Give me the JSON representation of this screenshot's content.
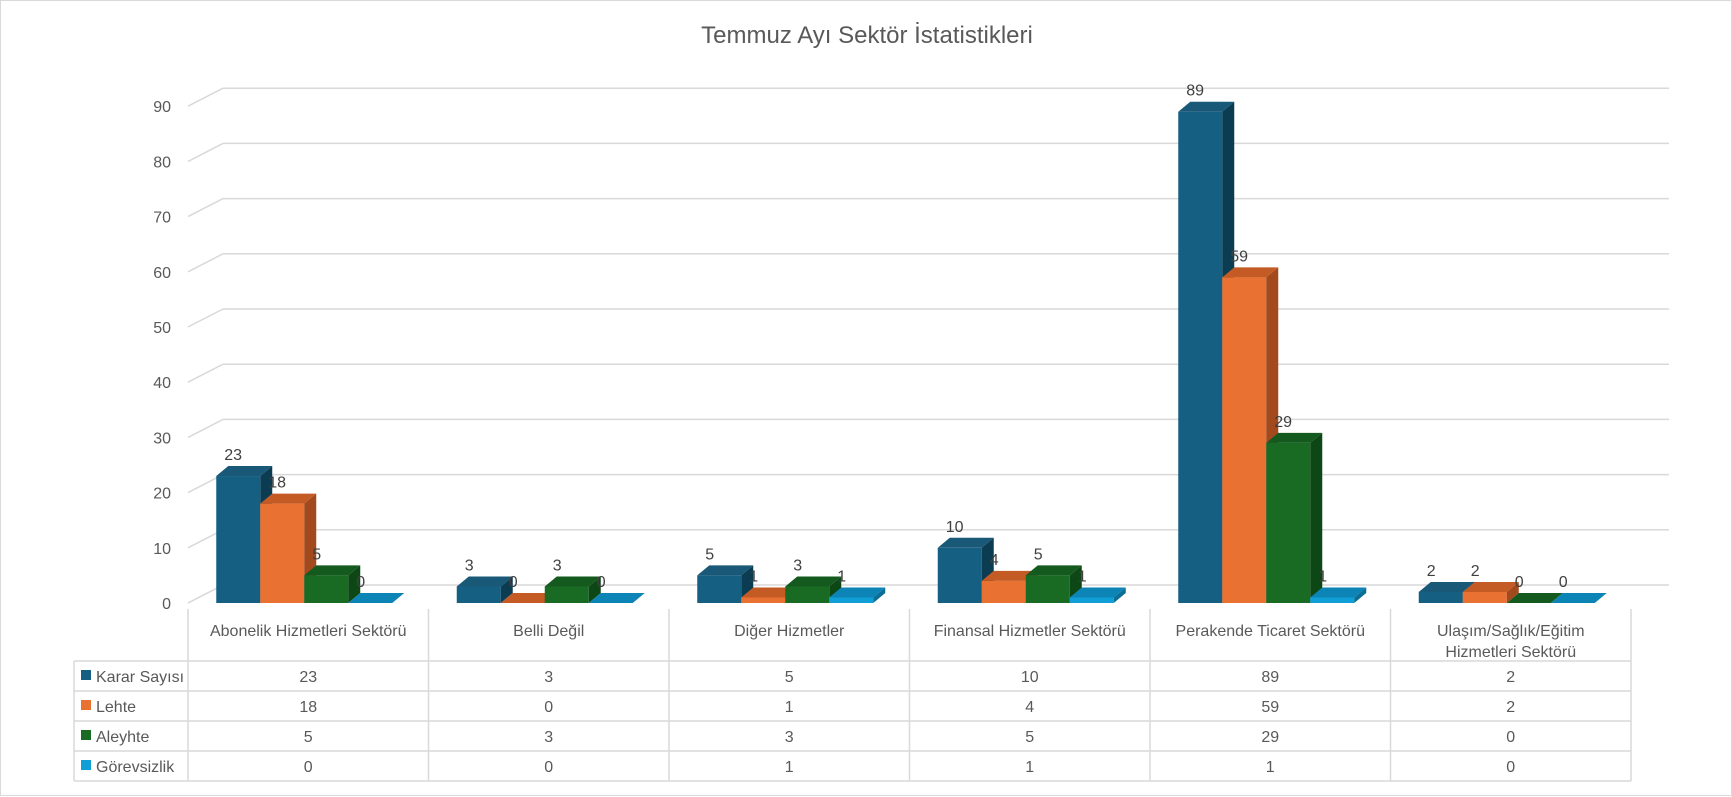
{
  "chart_data": {
    "type": "bar",
    "title": "Temmuz Ayı Sektör İstatistikleri",
    "categories": [
      "Abonelik Hizmetleri Sektörü",
      "Belli Değil",
      "Diğer Hizmetler",
      "Finansal Hizmetler Sektörü",
      "Perakende Ticaret Sektörü",
      "Ulaşım/Sağlık/Eğitim Hizmetleri Sektörü"
    ],
    "category_lines": [
      [
        "Abonelik Hizmetleri Sektörü"
      ],
      [
        "Belli Değil"
      ],
      [
        "Diğer Hizmetler"
      ],
      [
        "Finansal Hizmetler Sektörü"
      ],
      [
        "Perakende Ticaret Sektörü"
      ],
      [
        "Ulaşım/Sağlık/Eğitim",
        "Hizmetleri Sektörü"
      ]
    ],
    "series": [
      {
        "name": "Karar Sayısı",
        "values": [
          23,
          3,
          5,
          10,
          89,
          2
        ],
        "color": "#156082",
        "side": "#0b3c52",
        "top": "#1a5878"
      },
      {
        "name": "Lehte",
        "values": [
          18,
          0,
          1,
          4,
          59,
          2
        ],
        "color": "#e97132",
        "side": "#a24a1d",
        "top": "#c45a24"
      },
      {
        "name": "Aleyhte",
        "values": [
          5,
          3,
          3,
          5,
          29,
          0
        ],
        "color": "#196b24",
        "side": "#0e4716",
        "top": "#145a1e"
      },
      {
        "name": "Görevsizlik",
        "values": [
          0,
          0,
          1,
          1,
          1,
          0
        ],
        "color": "#0f9ed5",
        "side": "#0a6e96",
        "top": "#0c84b5"
      }
    ],
    "ylim": [
      0,
      90
    ],
    "yticks": [
      0,
      10,
      20,
      30,
      40,
      50,
      60,
      70,
      80,
      90
    ],
    "grid": true,
    "legend": "data-table"
  }
}
